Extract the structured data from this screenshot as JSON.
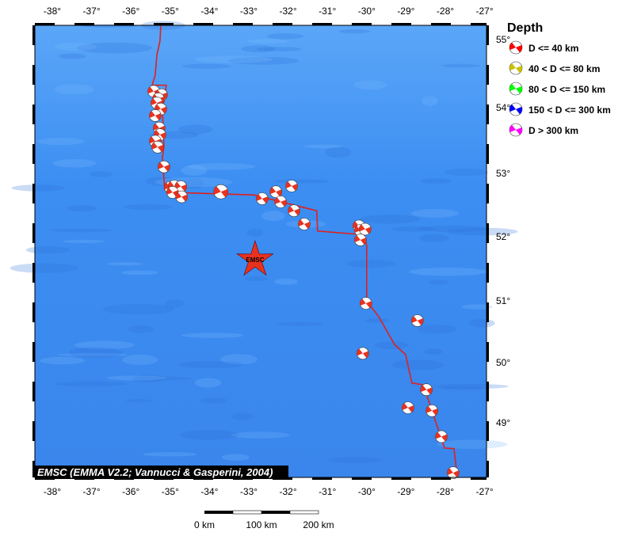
{
  "map": {
    "lon_ticks": [
      "-38°",
      "-37°",
      "-36°",
      "-35°",
      "-34°",
      "-33°",
      "-32°",
      "-31°",
      "-30°",
      "-29°",
      "-28°",
      "-27°"
    ],
    "lat_ticks": [
      "55°",
      "54°",
      "53°",
      "52°",
      "51°",
      "50°",
      "49°"
    ],
    "credit": "EMSC (EMMA V2.2; Vannucci & Gasperini, 2004)",
    "epicenter_label": "EMSC",
    "epicenter": {
      "lon": -32.84,
      "lat": 51.64,
      "color": "#e8321e"
    },
    "ocean_color": "#3a8cf0",
    "boundary_color": "#e0201e",
    "boundary": [
      [
        -35.24,
        55.2
      ],
      [
        -35.26,
        54.98
      ],
      [
        -35.34,
        54.77
      ],
      [
        -35.38,
        54.48
      ],
      [
        -35.46,
        54.33
      ],
      [
        -35.1,
        54.33
      ],
      [
        -35.14,
        54.13
      ],
      [
        -35.2,
        54.01
      ],
      [
        -35.16,
        53.41
      ],
      [
        -35.2,
        53.23
      ],
      [
        -35.16,
        52.93
      ],
      [
        -35.14,
        52.74
      ],
      [
        -35.0,
        52.7
      ],
      [
        -32.88,
        52.66
      ],
      [
        -31.27,
        52.41
      ],
      [
        -31.25,
        52.09
      ],
      [
        -30.06,
        52.03
      ],
      [
        -30.0,
        51.86
      ],
      [
        -30.0,
        51.0
      ],
      [
        -29.69,
        50.74
      ],
      [
        -29.29,
        50.29
      ],
      [
        -29.01,
        50.13
      ],
      [
        -28.85,
        49.66
      ],
      [
        -28.56,
        49.63
      ],
      [
        -28.26,
        49.05
      ],
      [
        -28.02,
        48.58
      ],
      [
        -27.78,
        48.57
      ],
      [
        -27.7,
        48.13
      ]
    ],
    "events": [
      [
        -35.42,
        54.24
      ],
      [
        -35.22,
        54.19
      ],
      [
        -35.3,
        54.13
      ],
      [
        -35.34,
        54.07
      ],
      [
        -35.24,
        53.98
      ],
      [
        -35.38,
        53.88
      ],
      [
        -35.28,
        53.69
      ],
      [
        -35.26,
        53.59
      ],
      [
        -35.38,
        53.49
      ],
      [
        -35.32,
        53.4
      ],
      [
        -35.16,
        53.1
      ],
      [
        -35.0,
        52.78
      ],
      [
        -34.9,
        52.8
      ],
      [
        -34.73,
        52.79
      ],
      [
        -34.94,
        52.7
      ],
      [
        -34.71,
        52.63
      ],
      [
        -33.71,
        52.71
      ],
      [
        -32.66,
        52.6
      ],
      [
        -32.31,
        52.71
      ],
      [
        -32.19,
        52.55
      ],
      [
        -31.91,
        52.8
      ],
      [
        -31.85,
        52.41
      ],
      [
        -31.59,
        52.2
      ],
      [
        -30.2,
        52.17
      ],
      [
        -30.16,
        52.1
      ],
      [
        -30.04,
        52.12
      ],
      [
        -30.16,
        51.95
      ],
      [
        -30.02,
        50.96
      ],
      [
        -28.71,
        50.68
      ],
      [
        -30.1,
        50.15
      ],
      [
        -28.48,
        49.55
      ],
      [
        -28.95,
        49.25
      ],
      [
        -28.34,
        49.2
      ],
      [
        -28.1,
        48.77
      ],
      [
        -27.8,
        48.17
      ]
    ]
  },
  "legend": {
    "title": "Depth",
    "items": [
      {
        "label": "D <= 40 km",
        "color": "#ff0000"
      },
      {
        "label": "40 < D <= 80 km",
        "color": "#c8c000"
      },
      {
        "label": "80 < D <= 150 km",
        "color": "#00ff00"
      },
      {
        "label": "150 < D <= 300 km",
        "color": "#0000ff"
      },
      {
        "label": "D > 300 km",
        "color": "#ff00ff"
      }
    ]
  },
  "scale_bar": {
    "labels": [
      "0 km",
      "100 km",
      "200 km"
    ]
  }
}
